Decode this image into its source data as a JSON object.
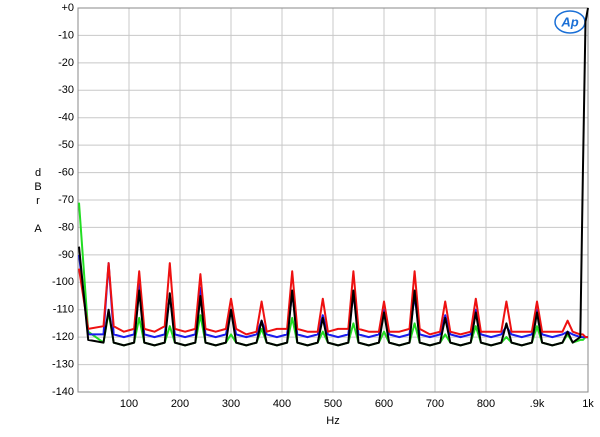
{
  "chart_data": {
    "type": "line",
    "logo": "Ap",
    "xlabel": "Hz",
    "ylabel": [
      "d",
      "B",
      "r",
      "A"
    ],
    "xlim": [
      0,
      1000
    ],
    "ylim": [
      -140,
      0
    ],
    "xticks": [
      100,
      200,
      300,
      400,
      500,
      600,
      700,
      800,
      {
        "value": 900,
        "label": ".9k"
      },
      {
        "value": 1000,
        "label": "1k"
      }
    ],
    "yticks": [
      {
        "value": 0,
        "label": "+0"
      },
      -10,
      -20,
      -30,
      -40,
      -50,
      -60,
      -70,
      -80,
      -90,
      -100,
      -110,
      -120,
      -130,
      -140
    ],
    "grid": true,
    "x": [
      2,
      20,
      50,
      60,
      70,
      90,
      110,
      120,
      130,
      150,
      170,
      180,
      190,
      210,
      230,
      240,
      250,
      270,
      290,
      300,
      310,
      330,
      350,
      360,
      370,
      390,
      410,
      420,
      430,
      450,
      470,
      480,
      490,
      510,
      530,
      540,
      550,
      570,
      590,
      600,
      610,
      630,
      650,
      660,
      670,
      690,
      710,
      720,
      730,
      750,
      770,
      780,
      790,
      810,
      830,
      840,
      850,
      870,
      890,
      900,
      910,
      930,
      950,
      960,
      970,
      985,
      990,
      995,
      1000
    ],
    "series": [
      {
        "name": "green",
        "color": "#22dd22",
        "values": [
          -71,
          -118,
          -122,
          -111,
          -122,
          -123,
          -122,
          -113,
          -122,
          -123,
          -122,
          -116,
          -122,
          -123,
          -122,
          -112,
          -122,
          -123,
          -122,
          -119,
          -122,
          -123,
          -122,
          -117,
          -122,
          -123,
          -122,
          -113,
          -122,
          -123,
          -122,
          -118,
          -122,
          -123,
          -122,
          -115,
          -122,
          -123,
          -122,
          -118,
          -122,
          -123,
          -122,
          -115,
          -122,
          -123,
          -122,
          -119,
          -122,
          -123,
          -122,
          -116,
          -122,
          -123,
          -122,
          -120,
          -122,
          -123,
          -122,
          -116,
          -122,
          -123,
          -122,
          -119,
          -122,
          -121,
          -121,
          -120,
          -120
        ]
      },
      {
        "name": "blue",
        "color": "#1a1aee",
        "values": [
          -90,
          -119,
          -119,
          -93,
          -119,
          -120,
          -119,
          -100,
          -119,
          -120,
          -119,
          -105,
          -119,
          -120,
          -119,
          -102,
          -119,
          -120,
          -119,
          -110,
          -119,
          -120,
          -119,
          -114,
          -119,
          -120,
          -119,
          -104,
          -119,
          -120,
          -119,
          -112,
          -119,
          -120,
          -119,
          -104,
          -119,
          -120,
          -119,
          -110,
          -119,
          -120,
          -119,
          -105,
          -119,
          -120,
          -119,
          -112,
          -119,
          -120,
          -119,
          -110,
          -119,
          -120,
          -119,
          -116,
          -119,
          -120,
          -119,
          -110,
          -119,
          -120,
          -119,
          -118,
          -119,
          -120,
          -120,
          -120,
          -120
        ]
      },
      {
        "name": "red",
        "color": "#ee1111",
        "values": [
          -95,
          -117,
          -116,
          -93,
          -116,
          -118,
          -117,
          -96,
          -117,
          -118,
          -116,
          -93,
          -117,
          -118,
          -117,
          -97,
          -117,
          -118,
          -117,
          -106,
          -117,
          -119,
          -118,
          -107,
          -118,
          -117,
          -117,
          -96,
          -117,
          -118,
          -118,
          -106,
          -118,
          -117,
          -117,
          -96,
          -117,
          -118,
          -118,
          -107,
          -118,
          -118,
          -117,
          -96,
          -117,
          -119,
          -118,
          -107,
          -118,
          -119,
          -118,
          -106,
          -118,
          -118,
          -118,
          -107,
          -118,
          -118,
          -118,
          -107,
          -118,
          -118,
          -118,
          -114,
          -118,
          -119,
          -119,
          -120,
          -120
        ]
      },
      {
        "name": "black",
        "color": "#000000",
        "values": [
          -87,
          -121,
          -122,
          -110,
          -122,
          -123,
          -122,
          -103,
          -122,
          -123,
          -122,
          -104,
          -122,
          -123,
          -122,
          -105,
          -122,
          -123,
          -122,
          -110,
          -122,
          -123,
          -122,
          -114,
          -122,
          -123,
          -122,
          -103,
          -122,
          -123,
          -122,
          -113,
          -122,
          -123,
          -122,
          -103,
          -122,
          -123,
          -122,
          -111,
          -122,
          -123,
          -122,
          -103,
          -122,
          -123,
          -122,
          -113,
          -122,
          -123,
          -122,
          -111,
          -122,
          -123,
          -122,
          -115,
          -122,
          -123,
          -122,
          -111,
          -122,
          -123,
          -122,
          -118,
          -122,
          -120,
          -60,
          -5,
          0
        ]
      }
    ]
  }
}
